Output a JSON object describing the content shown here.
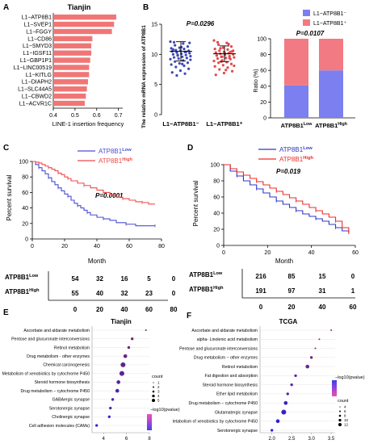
{
  "panels": {
    "A": {
      "letter": "A",
      "title": "Tianjin",
      "xlabel": "LINE-1 insertion frequency",
      "ticks": [
        "0.4",
        "0.5",
        "0.6",
        "0.7"
      ],
      "color": "#f07676",
      "chart_data": {
        "type": "bar",
        "categories": [
          "L1−ATP8B1",
          "L1−SVEP1",
          "L1−FGGY",
          "L1−CD86",
          "L1−SMYD3",
          "L1−IGSF11",
          "L1−GBP1P1",
          "L1−LINC00519",
          "L1−KITLG",
          "L1−DIAPH2",
          "L1−SLC44A5",
          "L1−CBWD2",
          "L1−ACVR1C"
        ],
        "values": [
          0.69,
          0.68,
          0.67,
          0.58,
          0.575,
          0.575,
          0.57,
          0.565,
          0.565,
          0.56,
          0.555,
          0.55,
          0.545
        ],
        "xlim": [
          0.4,
          0.72
        ]
      }
    },
    "B": {
      "letter": "B",
      "pvalue": "P=0.0296",
      "ylabel": "The relative mRNA expression of ATP8B1",
      "yticks": [
        "0",
        "5",
        "10",
        "15"
      ],
      "groups": [
        "L1−ATP8B1⁻",
        "L1−ATP8B1⁺"
      ],
      "colors": [
        "#3f48b5",
        "#e2494b"
      ],
      "chart_data": {
        "type": "scatter",
        "ylim": [
          0,
          15
        ],
        "series": [
          {
            "values": [
              12.1,
              11.8,
              11.5,
              11.3,
              11.1,
              11.0,
              10.9,
              10.7,
              10.6,
              10.6,
              10.5,
              10.4,
              10.3,
              10.2,
              10.1,
              10.0,
              9.9,
              9.8,
              9.7,
              9.6,
              9.5,
              9.4,
              9.3,
              9.2,
              9.0,
              8.8,
              8.6,
              8.5,
              8.3,
              8.1,
              7.9,
              7.6,
              7.3,
              7.0,
              6.8,
              6.5,
              11.9,
              11.2,
              10.8,
              10.4,
              9.9,
              9.1,
              8.4,
              12.0
            ],
            "mean": 10.5,
            "sd": 1.6
          },
          {
            "values": [
              12.3,
              11.9,
              11.6,
              11.3,
              11.1,
              10.9,
              10.8,
              10.6,
              10.5,
              10.4,
              10.3,
              10.2,
              10.1,
              10.0,
              9.9,
              9.8,
              9.7,
              9.6,
              9.5,
              9.4,
              9.3,
              9.2,
              9.0,
              8.9,
              8.7,
              8.6,
              8.4,
              8.2,
              8.0,
              7.8,
              7.5,
              7.2,
              6.9,
              6.6,
              11.7,
              11.0,
              10.6,
              10.2,
              9.8,
              9.4,
              8.8,
              8.1,
              7.4,
              12.0,
              10.4,
              9.6
            ],
            "mean": 10.1,
            "sd": 1.3
          }
        ]
      }
    },
    "B2": {
      "pvalue": "P=0.0107",
      "ylabel": "Ratio (%)",
      "yticks": [
        "0",
        "20",
        "40",
        "60",
        "80",
        "100"
      ],
      "legend": [
        "L1−ATP8B1⁻",
        "L1−ATP8B1⁺"
      ],
      "categories": [
        "ATP8B1",
        "ATP8B1"
      ],
      "cat_sup": [
        "Low",
        "High"
      ],
      "colors": [
        "#7b7ff0",
        "#f27a82"
      ],
      "chart_data": {
        "type": "bar",
        "stacked": true,
        "categories": [
          "ATP8B1 Low",
          "ATP8B1 High"
        ],
        "series": [
          {
            "name": "L1−ATP8B1⁻",
            "values": [
              41,
              60
            ]
          },
          {
            "name": "L1−ATP8B1⁺",
            "values": [
              59,
              40
            ]
          }
        ],
        "ylim": [
          0,
          100
        ]
      }
    },
    "C": {
      "letter": "C",
      "pvalue": "P=0.0001",
      "ylabel": "Percent survival",
      "xlabel": "Month",
      "yticks": [
        "0",
        "20",
        "40",
        "60",
        "80",
        "100"
      ],
      "xticks": [
        "0",
        "20",
        "40",
        "60",
        "80"
      ],
      "legend": [
        {
          "base": "ATP8B1",
          "sup": "Low",
          "color": "#4a4fd1"
        },
        {
          "base": "ATP8B1",
          "sup": "High",
          "color": "#ee4b4b"
        }
      ],
      "chart_data": {
        "type": "line",
        "xlim": [
          0,
          80
        ],
        "ylim": [
          0,
          100
        ],
        "series": [
          {
            "name": "ATP8B1 Low",
            "x": [
              0,
              2,
              4,
              6,
              8,
              10,
              12,
              14,
              16,
              18,
              20,
              22,
              24,
              26,
              28,
              30,
              32,
              34,
              36,
              40,
              44,
              48,
              52,
              58,
              64,
              70,
              76
            ],
            "y": [
              100,
              96,
              92,
              88,
              84,
              79,
              74,
              70,
              66,
              62,
              58,
              55,
              50,
              46,
              43,
              40,
              37,
              34,
              31,
              28,
              26,
              24,
              21,
              19,
              17,
              17,
              17
            ]
          },
          {
            "name": "ATP8B1 High",
            "x": [
              0,
              2,
              4,
              6,
              8,
              10,
              12,
              14,
              16,
              18,
              20,
              22,
              24,
              28,
              32,
              36,
              40,
              44,
              48,
              52,
              56,
              60,
              64,
              68,
              72,
              76
            ],
            "y": [
              100,
              99,
              98,
              96,
              94,
              92,
              90,
              88,
              85,
              83,
              80,
              78,
              75,
              72,
              69,
              66,
              63,
              60,
              57,
              54,
              52,
              50,
              48,
              47,
              45,
              45
            ]
          }
        ]
      }
    },
    "C_table": {
      "rows": [
        {
          "base": "ATP8B1",
          "sup": "Low",
          "values": [
            "54",
            "32",
            "16",
            "5",
            "0"
          ]
        },
        {
          "base": "ATP8B1",
          "sup": "High",
          "values": [
            "55",
            "40",
            "32",
            "23",
            "0"
          ]
        }
      ],
      "cols": [
        "0",
        "20",
        "40",
        "60",
        "80"
      ]
    },
    "D": {
      "letter": "D",
      "pvalue": "P=0.019",
      "ylabel": "Percent survival",
      "xlabel": "Month",
      "yticks": [
        "0",
        "20",
        "40",
        "60",
        "80",
        "100"
      ],
      "xticks": [
        "0",
        "20",
        "40",
        "60"
      ],
      "legend": [
        {
          "base": "ATP8B1",
          "sup": "Low",
          "color": "#3037c4"
        },
        {
          "base": "ATP8B1",
          "sup": "High",
          "color": "#ee2b2b"
        }
      ],
      "chart_data": {
        "type": "line",
        "xlim": [
          0,
          60
        ],
        "ylim": [
          0,
          100
        ],
        "series": [
          {
            "name": "ATP8B1 Low",
            "x": [
              0,
              3,
              6,
              9,
              12,
              15,
              18,
              21,
              24,
              27,
              30,
              33,
              36,
              39,
              42,
              45,
              48,
              51,
              54,
              57
            ],
            "y": [
              100,
              92,
              86,
              80,
              75,
              70,
              65,
              60,
              55,
              51,
              47,
              43,
              39,
              36,
              33,
              30,
              26,
              22,
              18,
              16
            ]
          },
          {
            "name": "ATP8B1 High",
            "x": [
              0,
              3,
              6,
              9,
              12,
              15,
              18,
              21,
              24,
              27,
              30,
              33,
              36,
              39,
              42,
              45,
              48,
              51,
              54,
              57
            ],
            "y": [
              100,
              95,
              91,
              87,
              83,
              79,
              75,
              71,
              67,
              63,
              59,
              55,
              51,
              47,
              43,
              39,
              35,
              30,
              22,
              14
            ]
          }
        ]
      }
    },
    "D_table": {
      "rows": [
        {
          "base": "ATP8B1",
          "sup": "Low",
          "values": [
            "216",
            "85",
            "15",
            "0"
          ]
        },
        {
          "base": "ATP8B1",
          "sup": "High",
          "values": [
            "191",
            "97",
            "31",
            "1"
          ]
        }
      ],
      "cols": [
        "0",
        "20",
        "40",
        "60"
      ]
    },
    "E": {
      "letter": "E",
      "title": "Tianjin",
      "xticks": [
        "4",
        "6",
        "8"
      ],
      "legend_count": "count",
      "legend_counts": [
        "1",
        "2",
        "3",
        "4",
        "5"
      ],
      "legend_color": "−log10(pvalue)",
      "chart_data": {
        "type": "scatter",
        "categories": [
          "Ascorbate and aldarate metabolism",
          "Pentose and glucuronate interconversions",
          "Retinol metabolism",
          "Drug metabolism - other enzymes",
          "Chemical carcinogenesis",
          "Metabolism of xenobiotics by cytochrome P450",
          "Steroid hormone biosynthesis",
          "Drug metabolism − cytochrome P450",
          "GABAergic synapse",
          "Serotonergic synapse",
          "Cholinergic synapse",
          "Cell adhesion molecules (CAMs)"
        ],
        "x": [
          7.7,
          6.5,
          6.2,
          5.9,
          5.7,
          5.6,
          5.3,
          5.2,
          4.8,
          4.6,
          4.5,
          3.4
        ],
        "count": [
          1,
          2,
          2,
          3,
          4,
          4,
          3,
          3,
          2,
          2,
          2,
          2
        ],
        "xlim": [
          3,
          8
        ]
      }
    },
    "F": {
      "letter": "F",
      "title": "TCGA",
      "xticks": [
        "2.0",
        "2.5",
        "3.0",
        "3.5"
      ],
      "legend_count": "count",
      "legend_counts": [
        "4",
        "6",
        "8",
        "10",
        "12"
      ],
      "legend_color": "−log10(pvalue)",
      "chart_data": {
        "type": "scatter",
        "categories": [
          "Ascorbate and aldarate metabolism",
          "alpha- Linolenic acid metabolism",
          "Pentose and glucuronate interconversions",
          "Drug metabolism − other enzymes",
          "Retinol metabolism",
          "Fat digestion and absorption",
          "Steroid hormone biosynthesis",
          "Ether lipid metabolism",
          "Drug metabolism − cytochrome P450",
          "Glutamatergic synapse",
          "letabolism of xenobiotics by cytochrome P450",
          "Serotonergic synapse"
        ],
        "x": [
          3.5,
          3.2,
          3.1,
          3.0,
          2.9,
          2.6,
          2.5,
          2.4,
          2.35,
          2.3,
          2.15,
          2.0
        ],
        "count": [
          4,
          4,
          4,
          6,
          8,
          6,
          6,
          6,
          8,
          10,
          8,
          6
        ],
        "xlim": [
          1.7,
          3.6
        ]
      }
    }
  }
}
